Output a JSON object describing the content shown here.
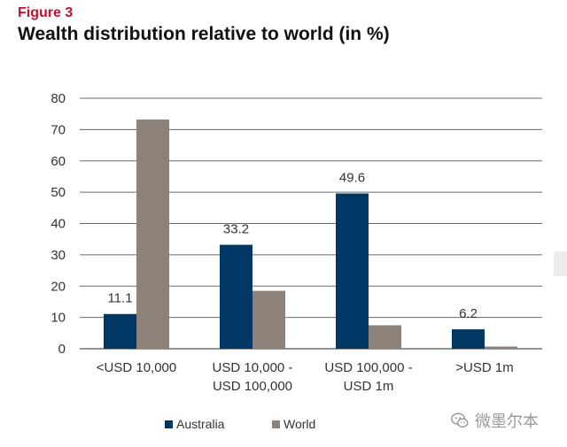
{
  "figure_label": "Figure 3",
  "chart_data": {
    "type": "bar",
    "title": "Wealth distribution relative to world (in %)",
    "xlabel": "",
    "ylabel": "",
    "ylim": [
      0,
      80
    ],
    "yticks": [
      0,
      10,
      20,
      30,
      40,
      50,
      60,
      70,
      80
    ],
    "grid": true,
    "legend_position": "bottom",
    "categories": [
      [
        "<USD 10,000"
      ],
      [
        "USD 10,000 -",
        "USD 100,000"
      ],
      [
        "USD 100,000 -",
        "USD 1m"
      ],
      [
        ">USD 1m"
      ]
    ],
    "series": [
      {
        "name": "Australia",
        "color": "#003865",
        "values": [
          11.1,
          33.2,
          49.6,
          6.2
        ],
        "data_labels": [
          "11.1",
          "33.2",
          "49.6",
          "6.2"
        ]
      },
      {
        "name": "World",
        "color": "#8c8279",
        "values": [
          73.2,
          18.5,
          7.5,
          0.7
        ]
      }
    ]
  },
  "watermark": {
    "text": "微墨尔本",
    "icon": "wechat-icon"
  }
}
